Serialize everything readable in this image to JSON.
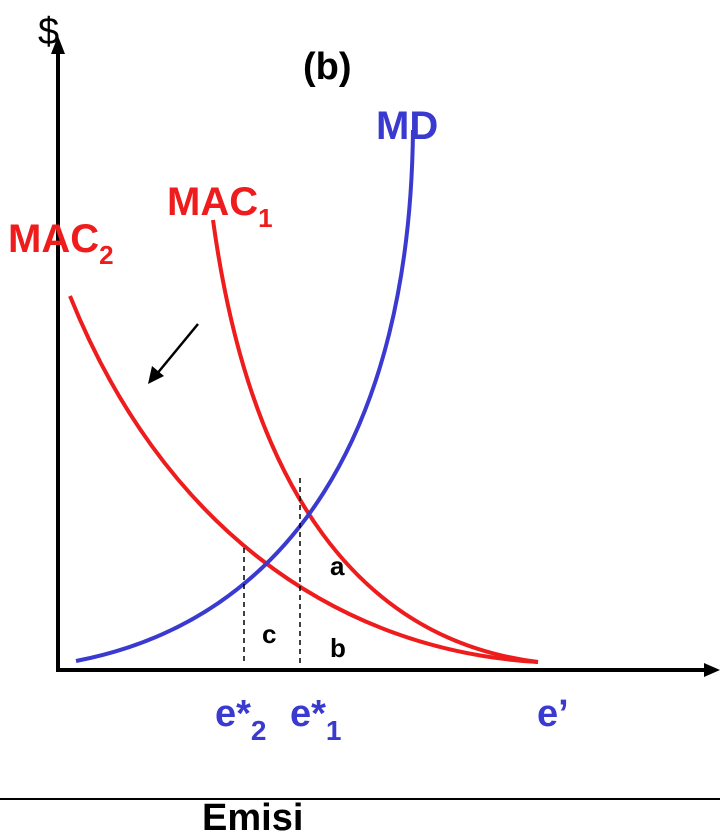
{
  "figure_label": "(b)",
  "y_axis_label": "$",
  "x_axis_label": "Emisi",
  "curves": {
    "md": {
      "label": "MD",
      "color": "#3a3ad0"
    },
    "mac1": {
      "label": "MAC",
      "subscript": "1",
      "color": "#ee1c1c"
    },
    "mac2": {
      "label": "MAC",
      "subscript": "2",
      "color": "#ee1c1c"
    }
  },
  "x_ticks": {
    "e2": {
      "label": "e*",
      "subscript": "2"
    },
    "e1": {
      "label": "e*",
      "subscript": "1"
    },
    "eprime": {
      "label": "e’"
    }
  },
  "regions": {
    "a": "a",
    "b": "b",
    "c": "c"
  },
  "colors": {
    "axis": "#000000",
    "red": "#ee1c1c",
    "blue": "#3a3ad0"
  }
}
